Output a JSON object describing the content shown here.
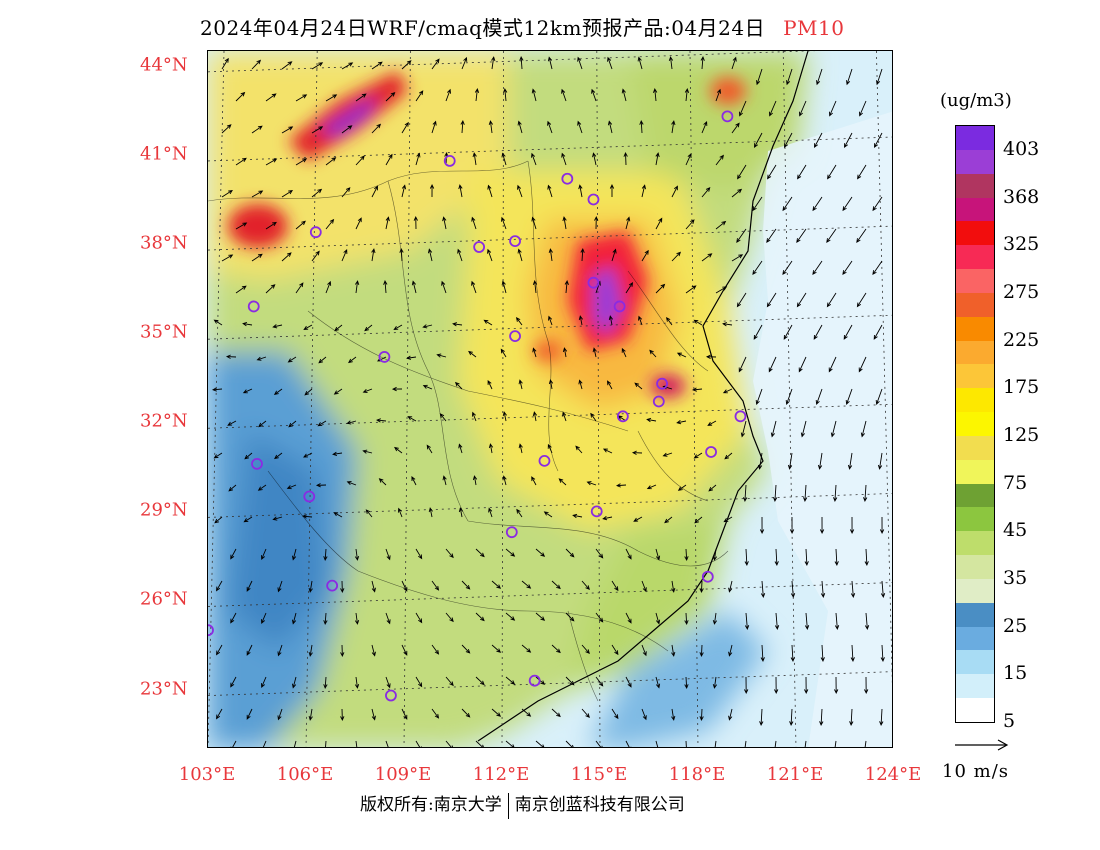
{
  "title": {
    "text": "2024年04月24日WRF/cmaq模式12km预报产品:04月24日",
    "species": "PM10"
  },
  "map": {
    "lat_labels": [
      {
        "label": "44°N",
        "lat": 44
      },
      {
        "label": "41°N",
        "lat": 41
      },
      {
        "label": "38°N",
        "lat": 38
      },
      {
        "label": "35°N",
        "lat": 35
      },
      {
        "label": "32°N",
        "lat": 32
      },
      {
        "label": "29°N",
        "lat": 29
      },
      {
        "label": "26°N",
        "lat": 26
      },
      {
        "label": "23°N",
        "lat": 23
      }
    ],
    "lon_labels": [
      {
        "label": "103°E",
        "lon": 103
      },
      {
        "label": "106°E",
        "lon": 106
      },
      {
        "label": "109°E",
        "lon": 109
      },
      {
        "label": "112°E",
        "lon": 112
      },
      {
        "label": "115°E",
        "lon": 115
      },
      {
        "label": "118°E",
        "lon": 118
      },
      {
        "label": "121°E",
        "lon": 121
      },
      {
        "label": "124°E",
        "lon": 124
      }
    ],
    "lon_range": [
      103,
      124
    ],
    "lat_range": [
      21,
      44.5
    ],
    "city_markers": [
      {
        "lon": 118.9,
        "lat": 42.3
      },
      {
        "lon": 110.4,
        "lat": 40.8
      },
      {
        "lon": 114.0,
        "lat": 40.2
      },
      {
        "lon": 114.8,
        "lat": 39.5
      },
      {
        "lon": 106.3,
        "lat": 38.4
      },
      {
        "lon": 111.3,
        "lat": 37.9
      },
      {
        "lon": 112.4,
        "lat": 38.1
      },
      {
        "lon": 114.8,
        "lat": 36.7
      },
      {
        "lon": 115.6,
        "lat": 35.9
      },
      {
        "lon": 104.4,
        "lat": 35.9
      },
      {
        "lon": 112.4,
        "lat": 34.9
      },
      {
        "lon": 108.4,
        "lat": 34.2
      },
      {
        "lon": 116.9,
        "lat": 33.3
      },
      {
        "lon": 116.8,
        "lat": 32.7
      },
      {
        "lon": 115.7,
        "lat": 32.2
      },
      {
        "lon": 119.3,
        "lat": 32.2
      },
      {
        "lon": 118.4,
        "lat": 31.0
      },
      {
        "lon": 113.3,
        "lat": 30.7
      },
      {
        "lon": 104.5,
        "lat": 30.6
      },
      {
        "lon": 106.1,
        "lat": 29.5
      },
      {
        "lon": 114.9,
        "lat": 29.0
      },
      {
        "lon": 112.3,
        "lat": 28.3
      },
      {
        "lon": 118.3,
        "lat": 26.8
      },
      {
        "lon": 106.8,
        "lat": 26.5
      },
      {
        "lon": 103.0,
        "lat": 25.0
      },
      {
        "lon": 113.0,
        "lat": 23.3
      },
      {
        "lon": 108.6,
        "lat": 22.8
      }
    ]
  },
  "colorbar": {
    "unit": "(ug/m3)",
    "levels": [
      "403",
      "368",
      "325",
      "275",
      "225",
      "175",
      "125",
      "75",
      "45",
      "35",
      "25",
      "15",
      "5"
    ],
    "colors": [
      "#7b2be0",
      "#9b3ed6",
      "#b03560",
      "#c7147a",
      "#f20d0d",
      "#f72a55",
      "#fa6464",
      "#f0602a",
      "#f98a00",
      "#fbaa2f",
      "#fcc638",
      "#fde800",
      "#fcf600",
      "#f2dd4f",
      "#f0f55a",
      "#6ea133",
      "#8cc63f",
      "#bedd6b",
      "#d4e6a0",
      "#e0edc6",
      "#4a8ec4",
      "#6aace0",
      "#a8dcf4",
      "#d2effa",
      "#ffffff"
    ]
  },
  "vector_ref": {
    "label": "10 m/s"
  },
  "footer": {
    "copyright_left": "版权所有:南京大学",
    "copyright_right": "南京创蓝科技有限公司"
  }
}
